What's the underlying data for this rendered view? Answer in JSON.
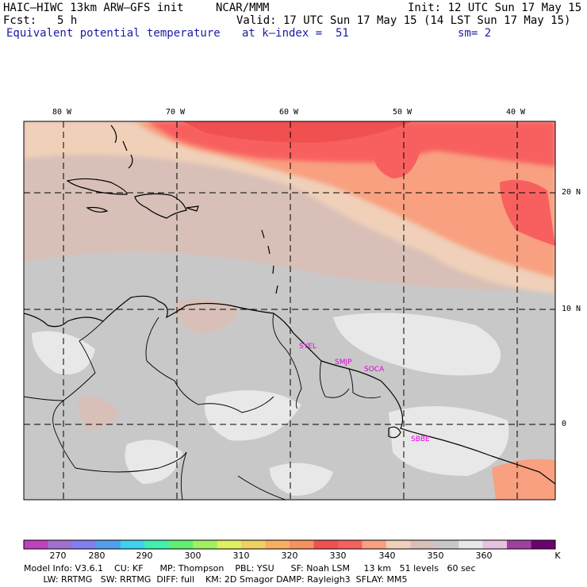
{
  "header": {
    "model_title": "HAIC–HIWC 13km ARW–GFS init",
    "org": "NCAR/MMM",
    "init": "Init: 12 UTC Sun 17 May 15",
    "fcst_label": "Fcst:",
    "fcst_value": "5 h",
    "valid": "Valid: 17 UTC Sun 17 May 15 (14 LST Sun 17 May 15)",
    "field": "Equivalent potential temperature",
    "level": "at k–index =  51",
    "smooth": "sm= 2"
  },
  "map": {
    "lon_labels": [
      "80 W",
      "70 W",
      "60 W",
      "50 W",
      "40 W"
    ],
    "lat_labels": [
      "20 N",
      "10 N",
      "0"
    ],
    "stations": [
      "SYEL",
      "SMJP",
      "SOCA",
      "SBBE"
    ]
  },
  "colorbar": {
    "labels": [
      "270",
      "280",
      "290",
      "300",
      "310",
      "320",
      "330",
      "340",
      "350",
      "360"
    ],
    "unit": "K",
    "colors": [
      "#c040c0",
      "#a070d0",
      "#8080f0",
      "#50a0f0",
      "#40d0f0",
      "#40f0b0",
      "#60f070",
      "#a0f060",
      "#e0f060",
      "#f0d060",
      "#f8b060",
      "#f89060",
      "#f05050",
      "#f86060",
      "#f8a080",
      "#f0d0b8",
      "#d8c0b8",
      "#c8c8c8",
      "#e8e8e8",
      "#e8c0e0",
      "#a040a0",
      "#700070"
    ]
  },
  "footer": {
    "line1": "Model Info: V3.6.1    CU: KF      MP: Thompson    PBL: YSU      SF: Noah LSM     13 km   51 levels   60 sec",
    "line2": "       LW: RRTMG   SW: RRTMG  DIFF: full    KM: 2D Smagor DAMP: Rayleigh3  SFLAY: MM5"
  }
}
